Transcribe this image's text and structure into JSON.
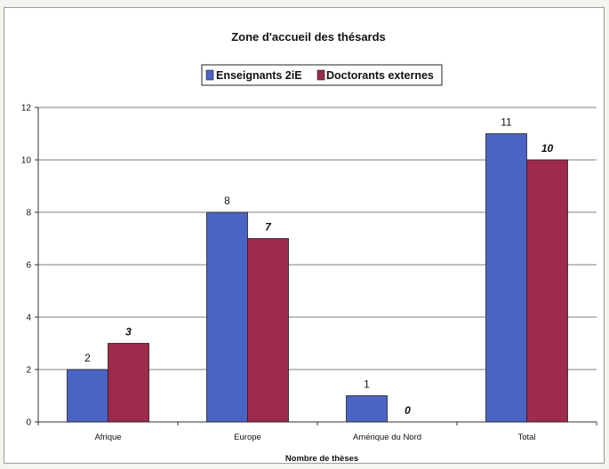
{
  "chart_data": {
    "type": "bar",
    "title": "Zone d'accueil des thésards",
    "xlabel": "Nombre de thèses",
    "ylabel": "",
    "categories": [
      "Afrique",
      "Europe",
      "Amérique du Nord",
      "Total"
    ],
    "series": [
      {
        "name": "Enseignants 2iE",
        "values": [
          2,
          8,
          1,
          11
        ],
        "color": "#4a64c4"
      },
      {
        "name": "Doctorants externes",
        "values": [
          3,
          7,
          0,
          10
        ],
        "color": "#9e2a4c"
      }
    ],
    "ylim": [
      0,
      12
    ],
    "yticks": [
      "0",
      "2",
      "4",
      "6",
      "8",
      "10",
      "12"
    ],
    "data_labels": [
      [
        "2",
        "8",
        "1",
        "11"
      ],
      [
        "3",
        "7",
        "0",
        "10"
      ]
    ],
    "grid": true,
    "legend_position": "top"
  }
}
